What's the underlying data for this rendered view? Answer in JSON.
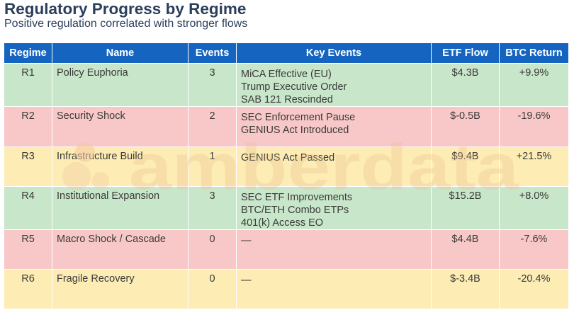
{
  "header": {
    "title": "Regulatory Progress by Regime",
    "subtitle": "Positive regulation correlated with stronger flows"
  },
  "watermark": "amberdata",
  "colors": {
    "header_bg": "#1565c0",
    "positive": "#c8e6c9",
    "negative": "#f8c8c8",
    "neutral": "#fdecb4"
  },
  "chart_data": {
    "type": "table",
    "title": "Regulatory Progress by Regime",
    "subtitle": "Positive regulation correlated with stronger flows",
    "columns": [
      "Regime",
      "Name",
      "Events",
      "Key Events",
      "ETF Flow",
      "BTC Return"
    ],
    "rows": [
      {
        "regime": "R1",
        "name": "Policy Euphoria",
        "events": "3",
        "key_events": [
          "MiCA Effective (EU)",
          "Trump Executive Order",
          "SAB 121 Rescinded"
        ],
        "etf_flow": "$4.3B",
        "btc_return": "+9.9%",
        "tone": "green"
      },
      {
        "regime": "R2",
        "name": "Security Shock",
        "events": "2",
        "key_events": [
          "SEC Enforcement Pause",
          "GENIUS Act Introduced"
        ],
        "etf_flow": "$-0.5B",
        "btc_return": "-19.6%",
        "tone": "red"
      },
      {
        "regime": "R3",
        "name": "Infrastructure Build",
        "events": "1",
        "key_events": [
          "GENIUS Act Passed"
        ],
        "etf_flow": "$9.4B",
        "btc_return": "+21.5%",
        "tone": "yellow"
      },
      {
        "regime": "R4",
        "name": "Institutional Expansion",
        "events": "3",
        "key_events": [
          "SEC ETF Improvements",
          "BTC/ETH Combo ETPs",
          "401(k) Access EO"
        ],
        "etf_flow": "$15.2B",
        "btc_return": "+8.0%",
        "tone": "green"
      },
      {
        "regime": "R5",
        "name": "Macro Shock / Cascade",
        "events": "0",
        "key_events": [
          "—"
        ],
        "etf_flow": "$4.4B",
        "btc_return": "-7.6%",
        "tone": "red"
      },
      {
        "regime": "R6",
        "name": "Fragile Recovery",
        "events": "0",
        "key_events": [
          "—"
        ],
        "etf_flow": "$-3.4B",
        "btc_return": "-20.4%",
        "tone": "yellow"
      }
    ]
  }
}
